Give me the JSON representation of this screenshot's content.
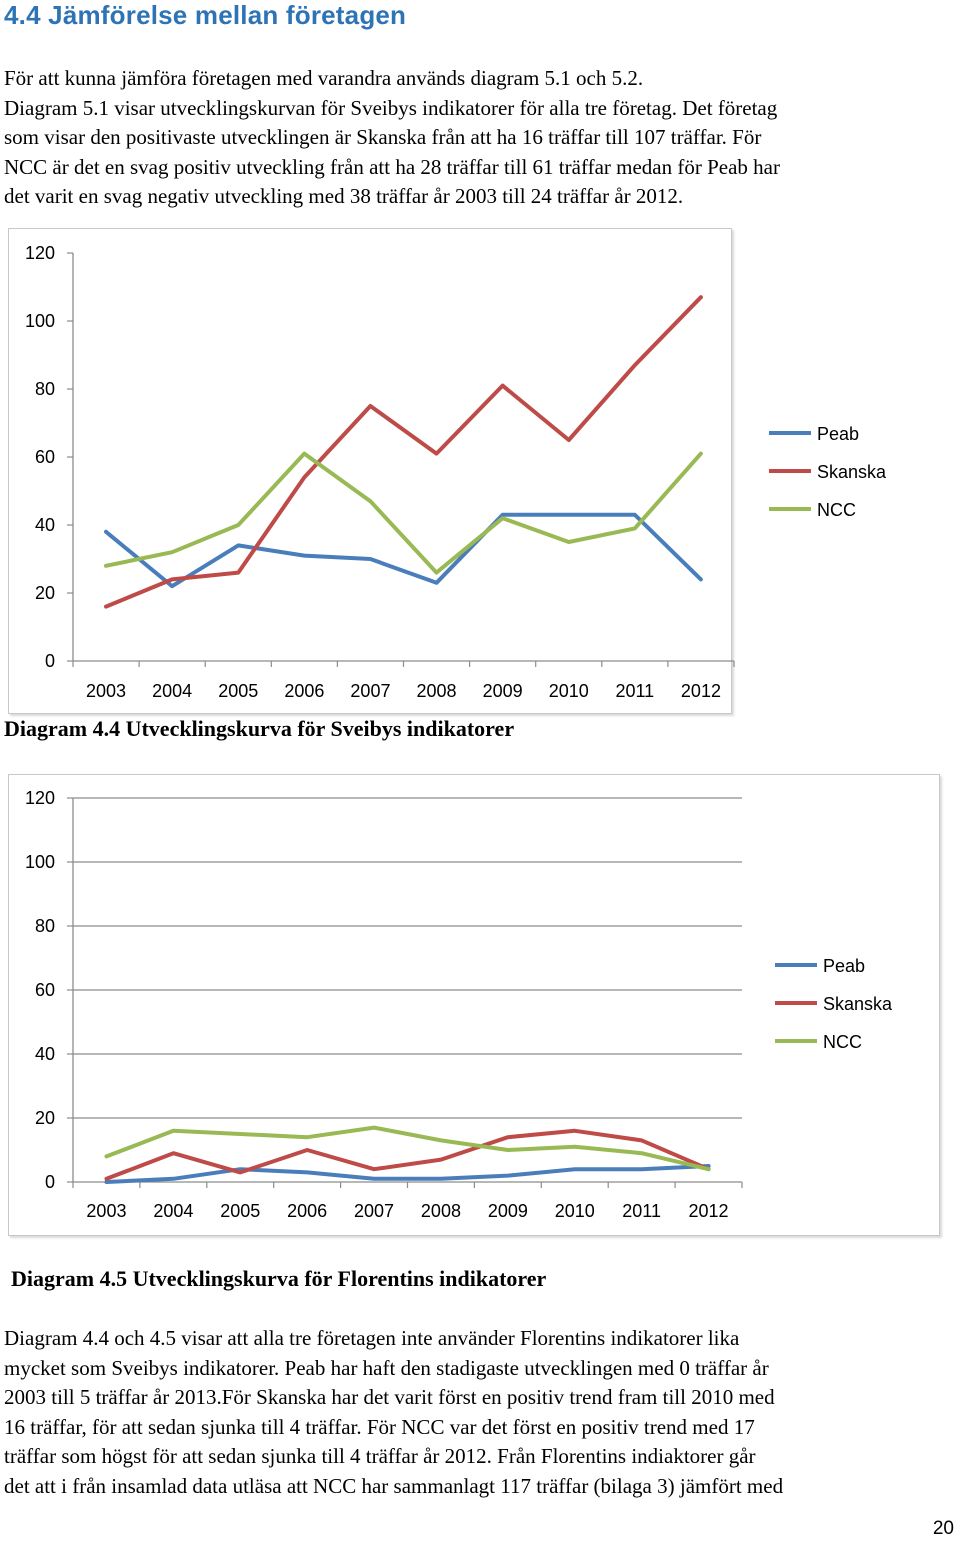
{
  "heading": "4.4 Jämförelse mellan företagen",
  "intro_lines": [
    "För att kunna jämföra företagen med varandra används diagram 5.1 och 5.2.",
    "Diagram 5.1 visar utvecklingskurvan för Sveibys indikatorer för alla tre företag. Det företag",
    "som visar den positivaste utvecklingen är Skanska från att ha 16 träffar till 107 träffar. För",
    "NCC är det en svag positiv utveckling från att ha 28 träffar till 61 träffar medan för Peab har",
    "det varit en svag negativ utveckling med 38 träffar år 2003 till 24 träffar år 2012."
  ],
  "chart1_caption": "Diagram 4.4 Utvecklingskurva för Sveibys indikatorer",
  "chart2_caption": "Diagram 4.5 Utvecklingskurva för Florentins indikatorer",
  "outro_lines": [
    "Diagram 4.4 och 4.5 visar att alla tre företagen inte använder Florentins indikatorer lika",
    "mycket som Sveibys indikatorer. Peab har haft den stadigaste utvecklingen med 0 träffar år",
    "2003 till 5 träffar år 2013.För Skanska har det varit först en positiv trend fram till 2010 med",
    "16 träffar, för att sedan sjunka till 4 träffar. För NCC var det först en positiv trend med 17",
    "träffar som högst för att sedan sjunka till 4 träffar år 2012. Från Florentins indiaktorer går",
    "det att i från insamlad data utläsa att NCC har sammanlagt 117 träffar (bilaga 3) jämfört med"
  ],
  "page_number": "20",
  "chart_data": [
    {
      "type": "line",
      "title": "",
      "x": [
        "2003",
        "2004",
        "2005",
        "2006",
        "2007",
        "2008",
        "2009",
        "2010",
        "2011",
        "2012"
      ],
      "ylim": [
        0,
        120
      ],
      "yticks": [
        "0",
        "20",
        "40",
        "60",
        "80",
        "100",
        "120"
      ],
      "grid": false,
      "legend": "right",
      "series": [
        {
          "name": "Peab",
          "color": "#4a7ebb",
          "values": [
            38,
            22,
            34,
            31,
            30,
            23,
            43,
            43,
            43,
            24
          ]
        },
        {
          "name": "Skanska",
          "color": "#be4b48",
          "values": [
            16,
            24,
            26,
            54,
            75,
            61,
            81,
            65,
            87,
            107
          ]
        },
        {
          "name": "NCC",
          "color": "#98b954",
          "values": [
            28,
            32,
            40,
            61,
            47,
            26,
            42,
            35,
            39,
            61
          ]
        }
      ]
    },
    {
      "type": "line",
      "title": "",
      "x": [
        "2003",
        "2004",
        "2005",
        "2006",
        "2007",
        "2008",
        "2009",
        "2010",
        "2011",
        "2012"
      ],
      "ylim": [
        0,
        120
      ],
      "yticks": [
        "0",
        "20",
        "40",
        "60",
        "80",
        "100",
        "120"
      ],
      "grid": true,
      "legend": "right",
      "series": [
        {
          "name": "Peab",
          "color": "#4a7ebb",
          "values": [
            0,
            1,
            4,
            3,
            1,
            1,
            2,
            4,
            4,
            5
          ]
        },
        {
          "name": "Skanska",
          "color": "#be4b48",
          "values": [
            1,
            9,
            3,
            10,
            4,
            7,
            14,
            16,
            13,
            4
          ]
        },
        {
          "name": "NCC",
          "color": "#98b954",
          "values": [
            8,
            16,
            15,
            14,
            17,
            13,
            10,
            11,
            9,
            4
          ]
        }
      ]
    }
  ]
}
